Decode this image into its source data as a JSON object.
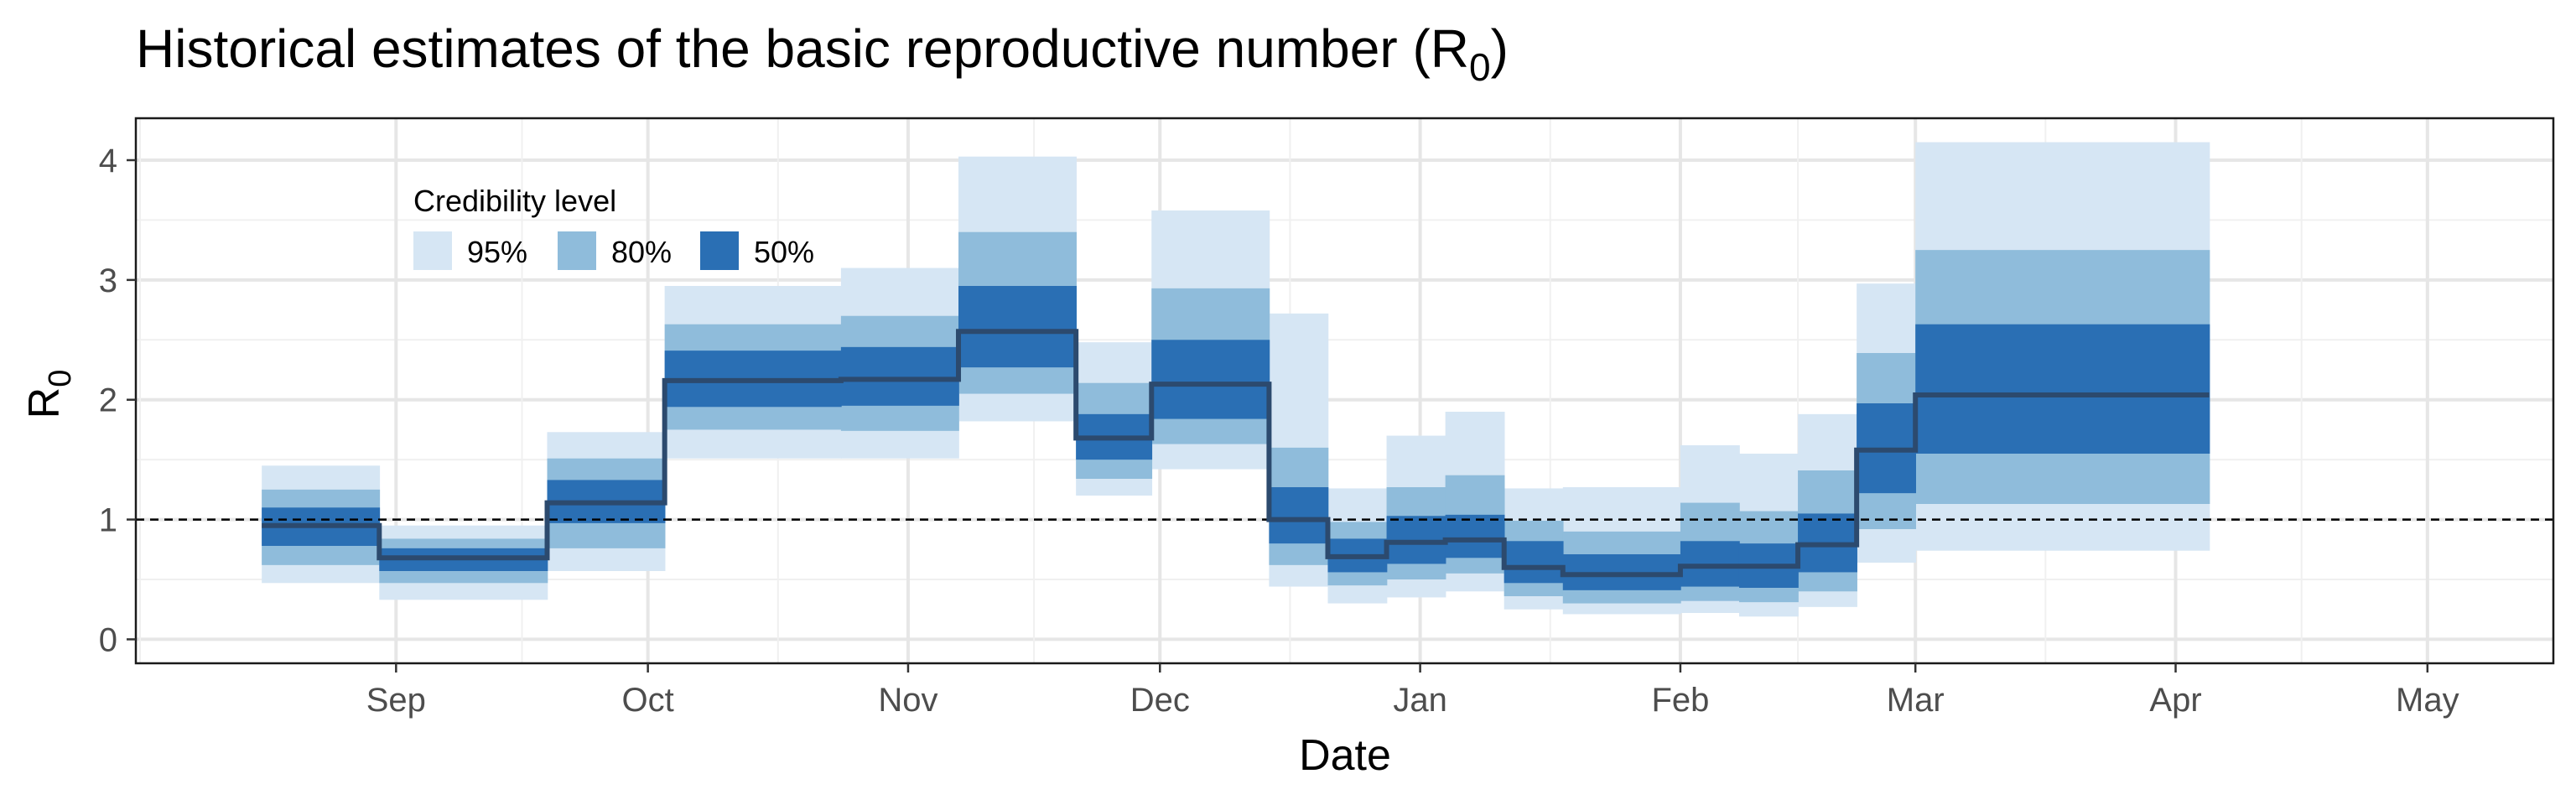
{
  "chart_data": {
    "type": "area",
    "title": "Historical estimates of the basic reproductive number (R",
    "title_subscript": "0",
    "title_suffix": ")",
    "xlabel": "Date",
    "ylabel": "R",
    "ylabel_subscript": "0",
    "x_ticks": [
      "Sep",
      "Oct",
      "Nov",
      "Dec",
      "Jan",
      "Feb",
      "Mar",
      "Apr",
      "May"
    ],
    "x_tick_dates": [
      "2020-09-01",
      "2020-10-01",
      "2020-11-01",
      "2020-12-01",
      "2021-01-01",
      "2021-02-01",
      "2021-03-01",
      "2021-04-01",
      "2021-05-01"
    ],
    "x_range": [
      "2020-08-01",
      "2021-05-16"
    ],
    "y_ticks": [
      0,
      1,
      2,
      3,
      4
    ],
    "ylim": [
      -0.2,
      4.35
    ],
    "reference_line": 1,
    "grid": true,
    "legend": {
      "title": "Credibility level",
      "position": "top-left",
      "items": [
        {
          "label": "95%",
          "color": "#d6e6f4"
        },
        {
          "label": "80%",
          "color": "#8fbcdb"
        },
        {
          "label": "50%",
          "color": "#2a6fb4"
        }
      ]
    },
    "colors": {
      "line": "#2c4a6e",
      "band95": "#d6e6f4",
      "band80": "#8fbcdb",
      "band50": "#2a6fb4"
    },
    "segments": [
      {
        "start": "2020-08-16",
        "end": "2020-08-30",
        "median": 0.95,
        "lo50": 0.78,
        "hi50": 1.1,
        "lo80": 0.62,
        "hi80": 1.25,
        "lo95": 0.47,
        "hi95": 1.45
      },
      {
        "start": "2020-08-30",
        "end": "2020-09-19",
        "median": 0.68,
        "lo50": 0.57,
        "hi50": 0.76,
        "lo80": 0.47,
        "hi80": 0.84,
        "lo95": 0.33,
        "hi95": 0.95
      },
      {
        "start": "2020-09-19",
        "end": "2020-10-03",
        "median": 1.14,
        "lo50": 0.97,
        "hi50": 1.33,
        "lo80": 0.76,
        "hi80": 1.51,
        "lo95": 0.57,
        "hi95": 1.73
      },
      {
        "start": "2020-10-03",
        "end": "2020-10-24",
        "median": 2.16,
        "lo50": 1.94,
        "hi50": 2.41,
        "lo80": 1.75,
        "hi80": 2.63,
        "lo95": 1.51,
        "hi95": 2.95
      },
      {
        "start": "2020-10-24",
        "end": "2020-11-07",
        "median": 2.17,
        "lo50": 1.95,
        "hi50": 2.44,
        "lo80": 1.74,
        "hi80": 2.7,
        "lo95": 1.51,
        "hi95": 3.1
      },
      {
        "start": "2020-11-07",
        "end": "2020-11-21",
        "median": 2.57,
        "lo50": 2.27,
        "hi50": 2.95,
        "lo80": 2.05,
        "hi80": 3.4,
        "lo95": 1.82,
        "hi95": 4.03
      },
      {
        "start": "2020-11-21",
        "end": "2020-11-30",
        "median": 1.68,
        "lo50": 1.5,
        "hi50": 1.88,
        "lo80": 1.34,
        "hi80": 2.14,
        "lo95": 1.2,
        "hi95": 2.48
      },
      {
        "start": "2020-11-30",
        "end": "2020-12-14",
        "median": 2.13,
        "lo50": 1.84,
        "hi50": 2.5,
        "lo80": 1.63,
        "hi80": 2.93,
        "lo95": 1.42,
        "hi95": 3.58
      },
      {
        "start": "2020-12-14",
        "end": "2020-12-21",
        "median": 1.0,
        "lo50": 0.8,
        "hi50": 1.27,
        "lo80": 0.62,
        "hi80": 1.6,
        "lo95": 0.44,
        "hi95": 2.72
      },
      {
        "start": "2020-12-21",
        "end": "2020-12-28",
        "median": 0.69,
        "lo50": 0.56,
        "hi50": 0.84,
        "lo80": 0.45,
        "hi80": 0.98,
        "lo95": 0.3,
        "hi95": 1.26
      },
      {
        "start": "2020-12-28",
        "end": "2021-01-04",
        "median": 0.81,
        "lo50": 0.63,
        "hi50": 1.03,
        "lo80": 0.5,
        "hi80": 1.27,
        "lo95": 0.35,
        "hi95": 1.7
      },
      {
        "start": "2021-01-04",
        "end": "2021-01-11",
        "median": 0.83,
        "lo50": 0.68,
        "hi50": 1.04,
        "lo80": 0.55,
        "hi80": 1.37,
        "lo95": 0.4,
        "hi95": 1.9
      },
      {
        "start": "2021-01-11",
        "end": "2021-01-18",
        "median": 0.6,
        "lo50": 0.47,
        "hi50": 0.82,
        "lo80": 0.36,
        "hi80": 0.99,
        "lo95": 0.25,
        "hi95": 1.26
      },
      {
        "start": "2021-01-18",
        "end": "2021-02-01",
        "median": 0.54,
        "lo50": 0.41,
        "hi50": 0.71,
        "lo80": 0.3,
        "hi80": 0.9,
        "lo95": 0.21,
        "hi95": 1.27
      },
      {
        "start": "2021-02-01",
        "end": "2021-02-08",
        "median": 0.61,
        "lo50": 0.44,
        "hi50": 0.82,
        "lo80": 0.32,
        "hi80": 1.14,
        "lo95": 0.22,
        "hi95": 1.62
      },
      {
        "start": "2021-02-08",
        "end": "2021-02-15",
        "median": 0.61,
        "lo50": 0.43,
        "hi50": 0.8,
        "lo80": 0.31,
        "hi80": 1.07,
        "lo95": 0.19,
        "hi95": 1.55
      },
      {
        "start": "2021-02-15",
        "end": "2021-02-22",
        "median": 0.79,
        "lo50": 0.56,
        "hi50": 1.05,
        "lo80": 0.4,
        "hi80": 1.41,
        "lo95": 0.27,
        "hi95": 1.88
      },
      {
        "start": "2021-02-22",
        "end": "2021-03-01",
        "median": 1.58,
        "lo50": 1.22,
        "hi50": 1.97,
        "lo80": 0.92,
        "hi80": 2.39,
        "lo95": 0.64,
        "hi95": 2.97
      },
      {
        "start": "2021-03-01",
        "end": "2021-04-05",
        "median": 2.04,
        "lo50": 1.55,
        "hi50": 2.63,
        "lo80": 1.13,
        "hi80": 3.25,
        "lo95": 0.74,
        "hi95": 4.15
      }
    ]
  }
}
